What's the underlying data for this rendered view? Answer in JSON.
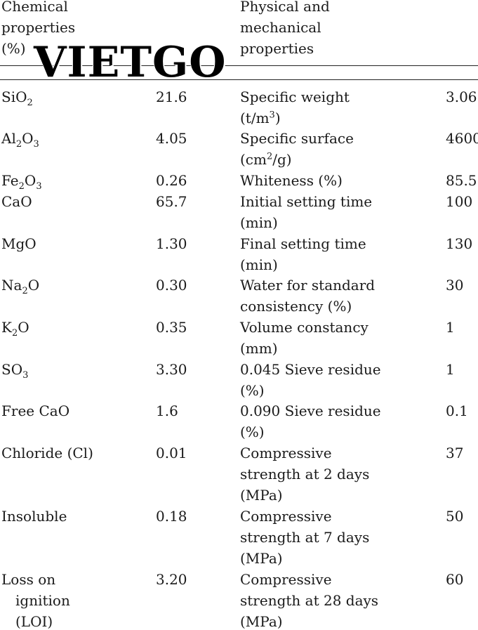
{
  "header": {
    "left": "Chemical\nproperties\n(%)",
    "right": "Physical and\nmechanical\nproperties"
  },
  "watermark": "VIETGO",
  "rows": [
    {
      "chem": {
        "base": "SiO",
        "sub": "2",
        "tail": ""
      },
      "chem_value": "21.6",
      "phys_lines": [
        "Specific weight",
        "(t/m"
      ],
      "phys_sup": "3",
      "phys_tail": ")",
      "phys_value": "3.06"
    },
    {
      "chem": {
        "base": "Al",
        "sub": "2",
        "tail": "O",
        "sub2": "3"
      },
      "chem_value": "4.05",
      "phys_lines": [
        "Specific surface",
        "(cm"
      ],
      "phys_sup": "2",
      "phys_tail": "/g)",
      "phys_value": "4600"
    },
    {
      "chem": {
        "base": "Fe",
        "sub": "2",
        "tail": "O",
        "sub2": "3"
      },
      "chem_value": "0.26",
      "phys": "Whiteness (%)",
      "phys_value": "85.5"
    },
    {
      "chem_text": "CaO",
      "chem_value": "65.7",
      "phys": "Initial setting time\n(min)",
      "phys_value": "100"
    },
    {
      "chem_text": "MgO",
      "chem_value": "1.30",
      "phys": "Final setting time\n(min)",
      "phys_value": "130"
    },
    {
      "chem": {
        "base": "Na",
        "sub": "2",
        "tail": "O"
      },
      "chem_value": "0.30",
      "phys": "Water for standard\nconsistency (%)",
      "phys_value": "30"
    },
    {
      "chem": {
        "base": "K",
        "sub": "2",
        "tail": "O"
      },
      "chem_value": "0.35",
      "phys": "Volume constancy\n(mm)",
      "phys_value": "1"
    },
    {
      "chem": {
        "base": "SO",
        "sub": "3",
        "tail": ""
      },
      "chem_value": "3.30",
      "phys": "0.045 Sieve residue\n(%)",
      "phys_value": "1"
    },
    {
      "chem_text": "Free CaO",
      "chem_value": "1.6",
      "phys": "0.090 Sieve residue\n(%)",
      "phys_value": "0.1"
    },
    {
      "chem_text": "Chloride (Cl)",
      "chem_value": "0.01",
      "phys": "Compressive\nstrength at 2 days\n(MPa)",
      "phys_value": "37"
    },
    {
      "chem_text": "Insoluble",
      "chem_value": "0.18",
      "phys": "Compressive\nstrength at 7 days\n(MPa)",
      "phys_value": "50"
    },
    {
      "chem_first": "Loss on",
      "chem_rest": [
        "ignition",
        "(LOI)"
      ],
      "chem_value": "3.20",
      "phys": "Compressive\nstrength at 28 days\n(MPa)",
      "phys_value": "60"
    }
  ]
}
